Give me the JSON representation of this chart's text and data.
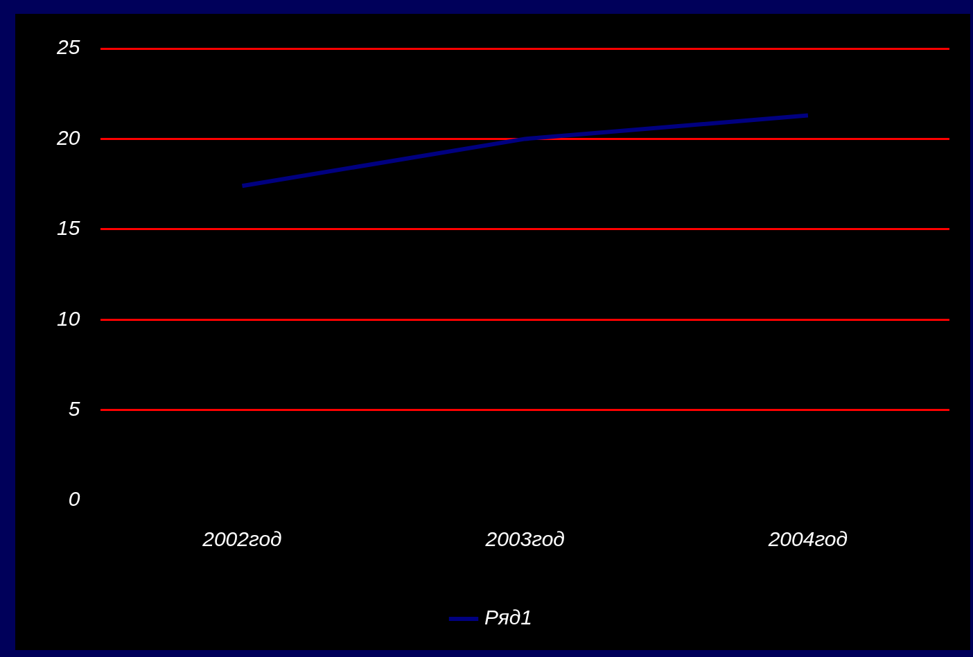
{
  "chart_data": {
    "type": "line",
    "categories": [
      "2002год",
      "2003год",
      "2004год"
    ],
    "series": [
      {
        "name": "Ряд1",
        "color": "#000080",
        "values": [
          17.4,
          20.0,
          21.3
        ]
      }
    ],
    "ylim": [
      0,
      25
    ],
    "yticks": [
      0,
      5,
      10,
      15,
      20,
      25
    ],
    "grid": "y",
    "legend": "bottom",
    "marker": "none",
    "line_style": "solid"
  }
}
